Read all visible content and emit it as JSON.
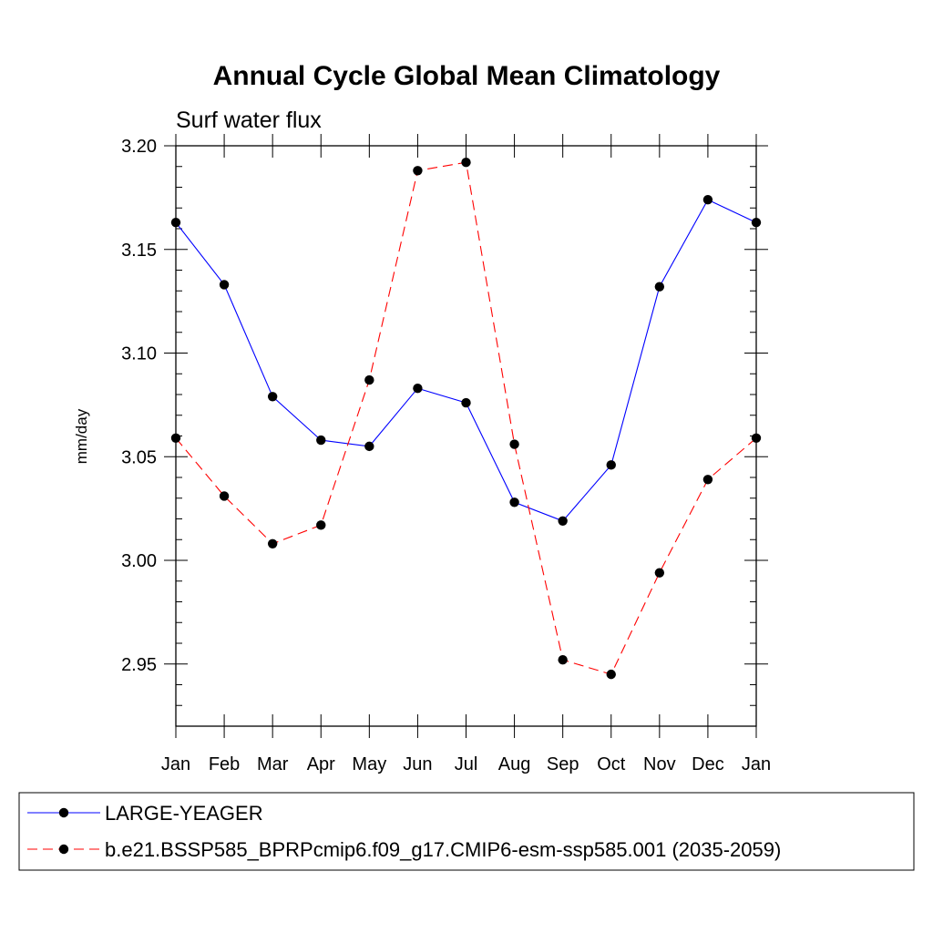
{
  "chart_data": {
    "type": "line",
    "title": "Annual Cycle Global Mean Climatology",
    "subtitle": "Surf water flux",
    "xlabel": "",
    "ylabel": "mm/day",
    "categories": [
      "Jan",
      "Feb",
      "Mar",
      "Apr",
      "May",
      "Jun",
      "Jul",
      "Aug",
      "Sep",
      "Oct",
      "Nov",
      "Dec",
      "Jan"
    ],
    "ylim": [
      2.92,
      3.2
    ],
    "yticks": [
      "2.95",
      "3.00",
      "3.05",
      "3.10",
      "3.15",
      "3.20"
    ],
    "grid": false,
    "legend_position": "bottom",
    "series": [
      {
        "name": "LARGE-YEAGER",
        "color": "#0000ff",
        "dash": "solid",
        "values": [
          3.163,
          3.133,
          3.079,
          3.058,
          3.055,
          3.083,
          3.076,
          3.028,
          3.019,
          3.046,
          3.132,
          3.174,
          3.163
        ]
      },
      {
        "name": "b.e21.BSSP585_BPRPcmip6.f09_g17.CMIP6-esm-ssp585.001 (2035-2059)",
        "color": "#ff0000",
        "dash": "dashed",
        "values": [
          3.059,
          3.031,
          3.008,
          3.017,
          3.087,
          3.188,
          3.192,
          3.056,
          2.952,
          2.945,
          2.994,
          3.039,
          3.059
        ]
      }
    ]
  }
}
